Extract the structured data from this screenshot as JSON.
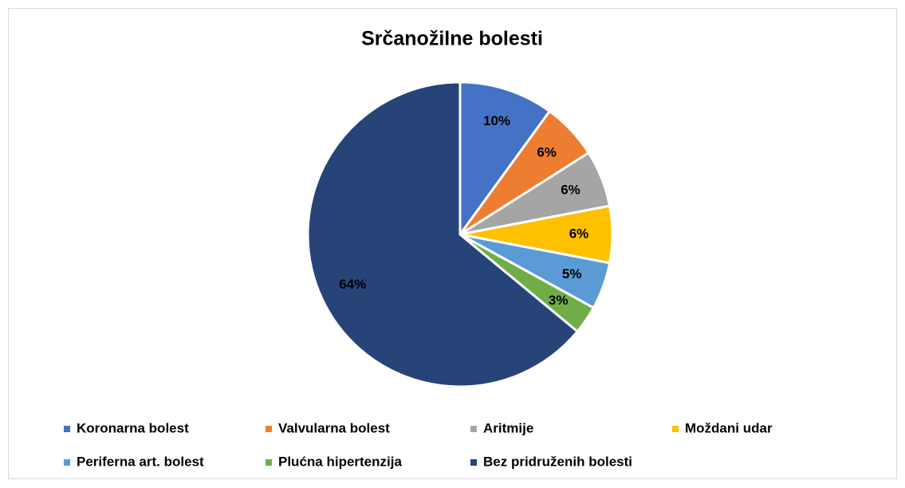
{
  "chart_data": {
    "type": "pie",
    "title": "Srčanožilne bolesti",
    "categories": [
      "Koronarna bolest",
      "Valvularna bolest",
      "Aritmije",
      "Moždani udar",
      "Periferna art. bolest",
      "Plućna hipertenzija",
      "Bez pridruženih bolesti"
    ],
    "values": [
      10,
      6,
      6,
      6,
      5,
      3,
      64
    ],
    "value_labels": [
      "10%",
      "6%",
      "6%",
      "6%",
      "5%",
      "3%",
      "64%"
    ],
    "colors": [
      "#4472c4",
      "#ed7d31",
      "#a5a5a5",
      "#ffc000",
      "#5b9bd5",
      "#70ad47",
      "#264478"
    ],
    "legend": "bottom"
  }
}
